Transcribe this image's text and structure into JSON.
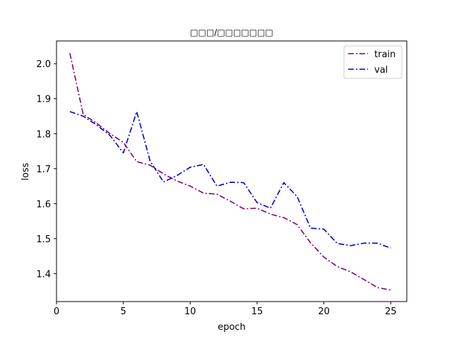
{
  "chart_data": {
    "type": "line",
    "title": "□□□/□□□□□□□",
    "xlabel": "epoch",
    "ylabel": "loss",
    "xlim": [
      0,
      26.2
    ],
    "ylim": [
      1.32,
      2.065
    ],
    "xticks": [
      0,
      5,
      10,
      15,
      20,
      25
    ],
    "yticks": [
      1.4,
      1.5,
      1.6,
      1.7,
      1.8,
      1.9,
      2.0
    ],
    "xtick_labels": [
      "0",
      "5",
      "10",
      "15",
      "20",
      "25"
    ],
    "ytick_labels": [
      "1.4",
      "1.5",
      "1.6",
      "1.7",
      "1.8",
      "1.9",
      "2.0"
    ],
    "grid": false,
    "legend_position": "upper right",
    "x": [
      1,
      2,
      3,
      4,
      5,
      6,
      7,
      8,
      9,
      10,
      11,
      12,
      13,
      14,
      15,
      16,
      17,
      18,
      19,
      20,
      21,
      22,
      23,
      24,
      25
    ],
    "series": [
      {
        "name": "train",
        "color": "#800080",
        "style": "dashdot",
        "values": [
          2.03,
          1.855,
          1.83,
          1.8,
          1.775,
          1.72,
          1.71,
          1.685,
          1.665,
          1.65,
          1.63,
          1.627,
          1.607,
          1.585,
          1.587,
          1.57,
          1.56,
          1.54,
          1.488,
          1.447,
          1.42,
          1.405,
          1.383,
          1.36,
          1.353
        ]
      },
      {
        "name": "val",
        "color": "#0000cc",
        "style": "dashdot",
        "values": [
          1.863,
          1.85,
          1.825,
          1.795,
          1.745,
          1.863,
          1.722,
          1.662,
          1.68,
          1.704,
          1.712,
          1.65,
          1.661,
          1.66,
          1.603,
          1.587,
          1.66,
          1.62,
          1.53,
          1.527,
          1.486,
          1.48,
          1.487,
          1.487,
          1.473
        ]
      }
    ]
  }
}
